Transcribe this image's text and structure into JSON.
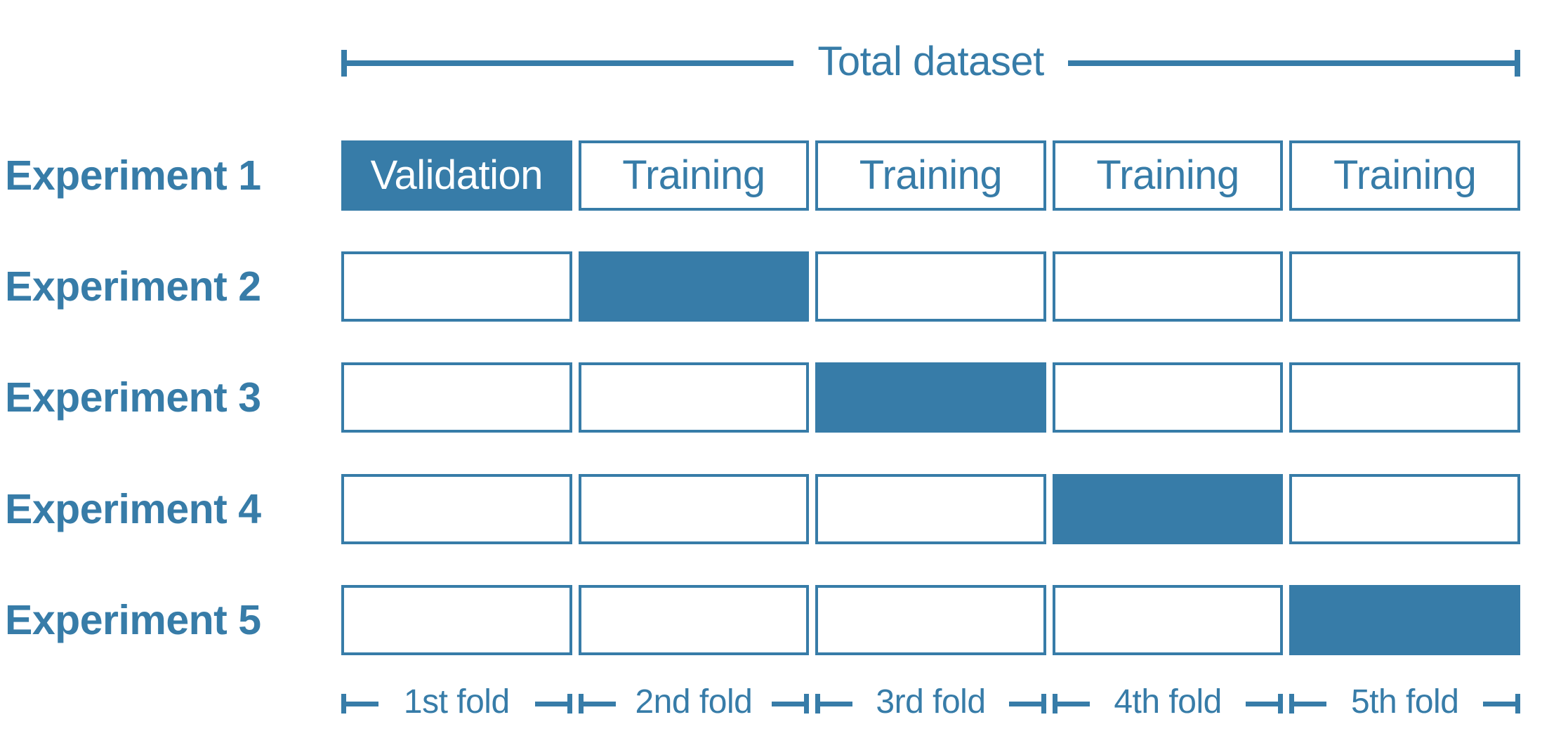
{
  "colors": {
    "accent": "#377CA8",
    "background": "#FFFFFF",
    "validation_text": "#FFFFFF"
  },
  "header": {
    "total_dataset_label": "Total dataset"
  },
  "experiments": [
    {
      "label": "Experiment 1",
      "validation_fold_index": 0,
      "cells": [
        "Validation",
        "Training",
        "Training",
        "Training",
        "Training"
      ]
    },
    {
      "label": "Experiment 2",
      "validation_fold_index": 1,
      "cells": [
        "",
        "",
        "",
        "",
        ""
      ]
    },
    {
      "label": "Experiment 3",
      "validation_fold_index": 2,
      "cells": [
        "",
        "",
        "",
        "",
        ""
      ]
    },
    {
      "label": "Experiment 4",
      "validation_fold_index": 3,
      "cells": [
        "",
        "",
        "",
        "",
        ""
      ]
    },
    {
      "label": "Experiment 5",
      "validation_fold_index": 4,
      "cells": [
        "",
        "",
        "",
        "",
        ""
      ]
    }
  ],
  "fold_labels": [
    "1st fold",
    "2nd fold",
    "3rd fold",
    "4th fold",
    "5th fold"
  ]
}
